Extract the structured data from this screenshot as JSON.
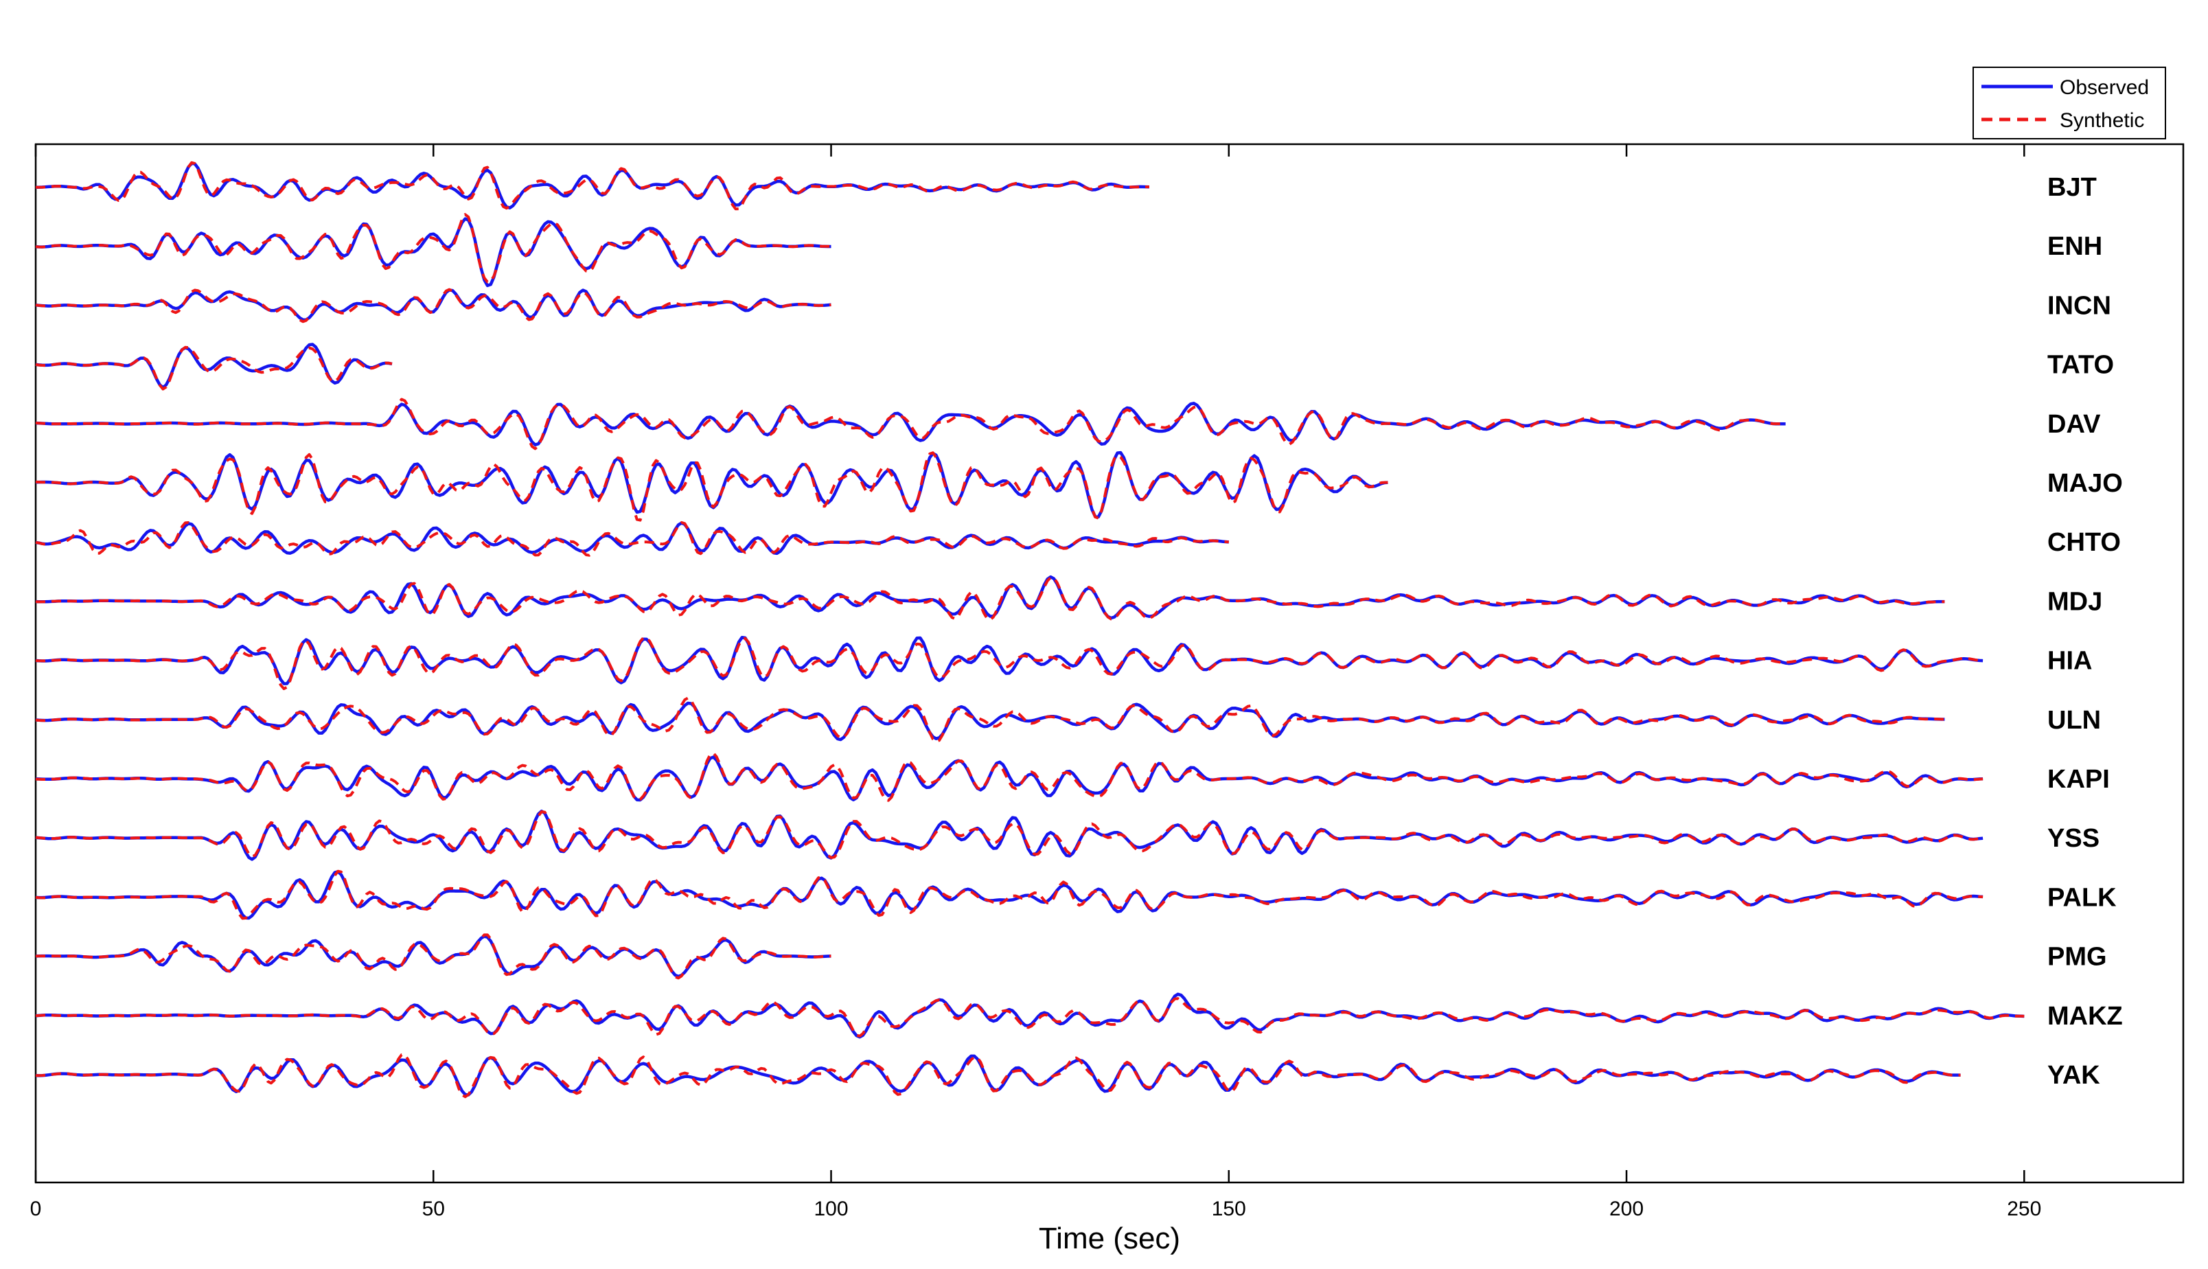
{
  "chart_data": {
    "type": "line",
    "title": "",
    "xlabel": "Time (sec)",
    "ylabel": "",
    "xlim": [
      0,
      270
    ],
    "xticks": [
      0,
      50,
      100,
      150,
      200,
      250
    ],
    "xtick_labels": [
      "0",
      "50",
      "100",
      "150",
      "200",
      "250"
    ],
    "grid": false,
    "legend": {
      "placement": "top-right",
      "entries": [
        {
          "label": "Observed",
          "color": "#1515ee",
          "style": "solid"
        },
        {
          "label": "Synthetic",
          "color": "#ee1515",
          "style": "dashed"
        }
      ]
    },
    "series": [
      {
        "name": "Observed",
        "color": "#1515ee",
        "style": "solid"
      },
      {
        "name": "Synthetic",
        "color": "#ee1515",
        "style": "dashed"
      }
    ],
    "stations": [
      {
        "name": "BJT",
        "end": 140,
        "active": [
          [
            5,
            100
          ],
          [
            100,
            140
          ]
        ],
        "amp": 0.75
      },
      {
        "name": "ENH",
        "end": 100,
        "active": [
          [
            10,
            90
          ]
        ],
        "amp": 0.8
      },
      {
        "name": "INCN",
        "end": 100,
        "active": [
          [
            10,
            95
          ]
        ],
        "amp": 0.65
      },
      {
        "name": "TATO",
        "end": 45,
        "active": [
          [
            10,
            45
          ]
        ],
        "amp": 0.7
      },
      {
        "name": "DAV",
        "end": 220,
        "active": [
          [
            40,
            170
          ],
          [
            170,
            220
          ]
        ],
        "amp": 0.7
      },
      {
        "name": "MAJO",
        "end": 170,
        "active": [
          [
            10,
            170
          ]
        ],
        "amp": 0.9
      },
      {
        "name": "CHTO",
        "end": 150,
        "active": [
          [
            0,
            100
          ],
          [
            100,
            150
          ]
        ],
        "amp": 0.8
      },
      {
        "name": "MDJ",
        "end": 240,
        "active": [
          [
            20,
            150
          ],
          [
            150,
            240
          ]
        ],
        "amp": 0.65
      },
      {
        "name": "HIA",
        "end": 245,
        "active": [
          [
            20,
            150
          ],
          [
            150,
            245
          ]
        ],
        "amp": 0.7
      },
      {
        "name": "ULN",
        "end": 240,
        "active": [
          [
            20,
            165
          ],
          [
            165,
            240
          ]
        ],
        "amp": 0.65
      },
      {
        "name": "KAPI",
        "end": 245,
        "active": [
          [
            20,
            150
          ],
          [
            150,
            245
          ]
        ],
        "amp": 0.75
      },
      {
        "name": "YSS",
        "end": 245,
        "active": [
          [
            20,
            165
          ],
          [
            165,
            245
          ]
        ],
        "amp": 0.85
      },
      {
        "name": "PALK",
        "end": 245,
        "active": [
          [
            20,
            145
          ],
          [
            145,
            245
          ]
        ],
        "amp": 0.8
      },
      {
        "name": "PMG",
        "end": 100,
        "active": [
          [
            10,
            95
          ]
        ],
        "amp": 0.75
      },
      {
        "name": "MAKZ",
        "end": 250,
        "active": [
          [
            40,
            160
          ],
          [
            160,
            250
          ]
        ],
        "amp": 0.75
      },
      {
        "name": "YAK",
        "end": 242,
        "active": [
          [
            20,
            165
          ],
          [
            165,
            242
          ]
        ],
        "amp": 0.7
      }
    ]
  }
}
